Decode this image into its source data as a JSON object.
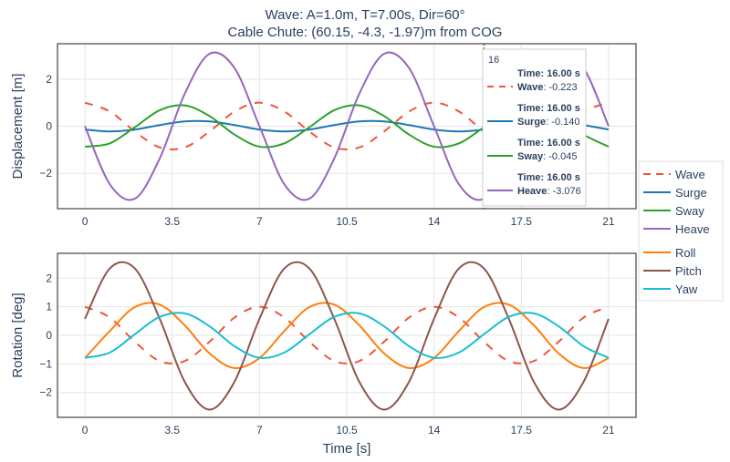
{
  "title": {
    "line1": "Wave: A=1.0m, T=7.00s, Dir=60°",
    "line2": "Cable Chute: (60.15, -4.3, -1.97)m from COG"
  },
  "legend": {
    "items": [
      "Wave",
      "Surge",
      "Sway",
      "Heave",
      "Roll",
      "Pitch",
      "Yaw"
    ]
  },
  "hover": {
    "x_label": "16",
    "entries": [
      {
        "time": "Time: 16.00 s",
        "series": "Wave",
        "value": ": -0.223",
        "color": "#ef553b",
        "dash": true
      },
      {
        "time": "Time: 16.00 s",
        "series": "Surge",
        "value": ": -0.140",
        "color": "#1f77b4",
        "dash": false
      },
      {
        "time": "Time: 16.00 s",
        "series": "Sway",
        "value": ": -0.045",
        "color": "#2ca02c",
        "dash": false
      },
      {
        "time": "Time: 16.00 s",
        "series": "Heave",
        "value": ": -3.076",
        "color": "#9467bd",
        "dash": false
      }
    ]
  },
  "chart_data": [
    {
      "type": "line",
      "title": "",
      "xlabel": "",
      "ylabel": "Displacement [m]",
      "xlim": [
        -1.1,
        22.1
      ],
      "ylim": [
        -3.5,
        3.5
      ],
      "xticks": [
        "0",
        "3.5",
        "7",
        "10.5",
        "14",
        "17.5",
        "21"
      ],
      "yticks": [
        "−2",
        "0",
        "2"
      ],
      "grid": true,
      "hover_x": 16,
      "x": [
        0,
        1,
        2,
        3,
        4,
        5,
        6,
        7,
        8,
        9,
        10,
        11,
        12,
        13,
        14,
        15,
        16,
        17,
        18,
        19,
        20,
        21
      ],
      "series": [
        {
          "name": "Wave",
          "color": "#ef553b",
          "dash": true,
          "values": [
            1,
            0.623,
            -0.223,
            -0.901,
            -0.901,
            -0.223,
            0.623,
            1,
            0.623,
            -0.223,
            -0.901,
            -0.901,
            -0.223,
            0.623,
            1,
            0.623,
            -0.223,
            -0.901,
            -0.901,
            -0.223,
            0.623,
            1
          ]
        },
        {
          "name": "Surge",
          "color": "#1f77b4",
          "dash": false,
          "values": [
            -0.14,
            -0.224,
            -0.14,
            0.05,
            0.202,
            0.202,
            0.05,
            -0.14,
            -0.224,
            -0.14,
            0.05,
            0.202,
            0.202,
            0.05,
            -0.14,
            -0.224,
            -0.14,
            0.05,
            0.202,
            0.202,
            0.05,
            -0.14
          ]
        },
        {
          "name": "Sway",
          "color": "#2ca02c",
          "dash": false,
          "values": [
            -0.868,
            -0.728,
            -0.045,
            0.678,
            0.885,
            0.428,
            -0.355,
            -0.868,
            -0.728,
            -0.045,
            0.678,
            0.885,
            0.428,
            -0.355,
            -0.868,
            -0.728,
            -0.045,
            0.678,
            0.885,
            0.428,
            -0.355,
            -0.868
          ]
        },
        {
          "name": "Heave",
          "color": "#9467bd",
          "dash": false,
          "values": [
            0,
            -2.467,
            -3.076,
            -1.369,
            1.369,
            3.076,
            2.467,
            0,
            -2.467,
            -3.076,
            -1.369,
            1.369,
            3.076,
            2.467,
            0,
            -2.467,
            -3.076,
            -1.369,
            1.369,
            3.076,
            2.467,
            0
          ]
        }
      ]
    },
    {
      "type": "line",
      "title": "",
      "xlabel": "Time [s]",
      "ylabel": "Rotation [deg]",
      "xlim": [
        -1.1,
        22.1
      ],
      "ylim": [
        -2.87,
        2.87
      ],
      "xticks": [
        "0",
        "3.5",
        "7",
        "10.5",
        "14",
        "17.5",
        "21"
      ],
      "yticks": [
        "−2",
        "−1",
        "0",
        "1",
        "2"
      ],
      "grid": true,
      "x": [
        0,
        1,
        2,
        3,
        4,
        5,
        6,
        7,
        8,
        9,
        10,
        11,
        12,
        13,
        14,
        15,
        16,
        17,
        18,
        19,
        20,
        21
      ],
      "series": [
        {
          "name": "Wave",
          "color": "#ef553b",
          "dash": true,
          "values": [
            1,
            0.623,
            -0.223,
            -0.901,
            -0.901,
            -0.223,
            0.623,
            1,
            0.623,
            -0.223,
            -0.901,
            -0.901,
            -0.223,
            0.623,
            1,
            0.623,
            -0.223,
            -0.901,
            -0.901,
            -0.223,
            0.623,
            1
          ]
        },
        {
          "name": "Roll",
          "color": "#ff7f0e",
          "dash": false,
          "values": [
            -0.795,
            0.154,
            0.987,
            1.076,
            0.355,
            -0.634,
            -1.145,
            -0.795,
            0.154,
            0.987,
            1.076,
            0.355,
            -0.634,
            -1.145,
            -0.795,
            0.154,
            0.987,
            1.076,
            0.355,
            -0.634,
            -1.145,
            -0.795
          ]
        },
        {
          "name": "Pitch",
          "color": "#8c564b",
          "dash": false,
          "values": [
            0.579,
            2.343,
            2.343,
            0.579,
            -1.621,
            -2.6,
            -1.621,
            0.579,
            2.343,
            2.343,
            0.579,
            -1.621,
            -2.6,
            -1.621,
            0.579,
            2.343,
            2.343,
            0.579,
            -1.621,
            -2.6,
            -1.621,
            0.579
          ]
        },
        {
          "name": "Yaw",
          "color": "#17becf",
          "dash": false,
          "values": [
            -0.787,
            -0.602,
            0.036,
            0.647,
            0.77,
            0.314,
            -0.38,
            -0.787,
            -0.602,
            0.036,
            0.647,
            0.77,
            0.314,
            -0.38,
            -0.787,
            -0.602,
            0.036,
            0.647,
            0.77,
            0.314,
            -0.38,
            -0.787
          ]
        }
      ]
    }
  ]
}
